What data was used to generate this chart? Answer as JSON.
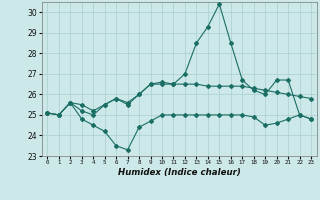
{
  "xlabel": "Humidex (Indice chaleur)",
  "background_color": "#cce8e8",
  "grid_color": "#aacece",
  "line_color": "#1a6e64",
  "x": [
    0,
    1,
    2,
    3,
    4,
    5,
    6,
    7,
    8,
    9,
    10,
    11,
    12,
    13,
    14,
    15,
    16,
    17,
    18,
    19,
    20,
    21,
    22,
    23
  ],
  "line1": [
    25.1,
    25.0,
    25.6,
    25.5,
    25.2,
    25.5,
    25.8,
    25.6,
    26.0,
    26.5,
    26.6,
    26.5,
    26.5,
    26.5,
    26.4,
    26.4,
    26.4,
    26.4,
    26.3,
    26.2,
    26.1,
    26.0,
    25.9,
    25.8
  ],
  "line2": [
    25.1,
    25.0,
    25.6,
    24.8,
    24.5,
    24.2,
    23.5,
    23.3,
    24.4,
    24.7,
    25.0,
    25.0,
    25.0,
    25.0,
    25.0,
    25.0,
    25.0,
    25.0,
    24.9,
    24.5,
    24.6,
    24.8,
    25.0,
    24.8
  ],
  "line3": [
    25.1,
    25.0,
    25.6,
    25.2,
    25.0,
    25.5,
    25.8,
    25.5,
    26.0,
    26.5,
    26.5,
    26.5,
    27.0,
    28.5,
    29.3,
    30.4,
    28.5,
    26.7,
    26.2,
    26.0,
    26.7,
    26.7,
    25.0,
    24.8
  ],
  "ylim": [
    23,
    30.5
  ],
  "xlim": [
    -0.5,
    23.5
  ],
  "yticks": [
    23,
    24,
    25,
    26,
    27,
    28,
    29,
    30
  ],
  "xticks": [
    0,
    1,
    2,
    3,
    4,
    5,
    6,
    7,
    8,
    9,
    10,
    11,
    12,
    13,
    14,
    15,
    16,
    17,
    18,
    19,
    20,
    21,
    22,
    23
  ]
}
